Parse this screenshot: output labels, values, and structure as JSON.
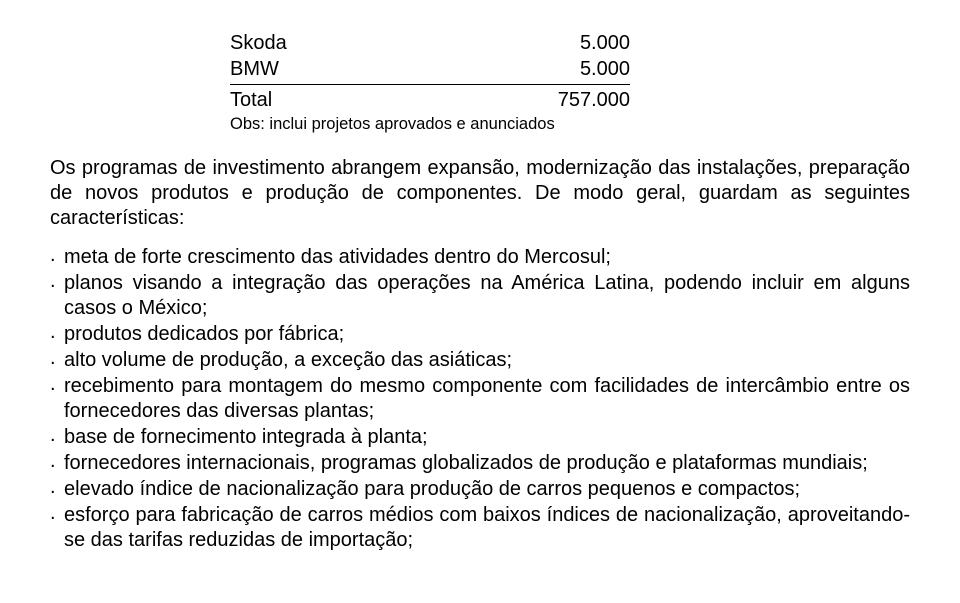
{
  "table": {
    "rows": [
      {
        "label": "Skoda",
        "value": "5.000"
      },
      {
        "label": "BMW",
        "value": "5.000"
      }
    ],
    "total": {
      "label": "Total",
      "value": "757.000"
    },
    "obs": "Obs: inclui projetos aprovados e anunciados"
  },
  "paragraph": {
    "text_before": "Os programas de investimento abrangem expansão, modernização das instalações, preparação de novos produtos e produção de componentes. De modo geral, guardam  as seguintes ",
    "char_word": "características:"
  },
  "bullets": [
    "meta de forte crescimento das atividades dentro do Mercosul;",
    "planos visando a integração das operações na América Latina, podendo incluir em alguns casos o México;",
    "produtos dedicados por fábrica;",
    "alto volume de produção, a exceção das asiáticas;",
    "recebimento para montagem do mesmo componente com facilidades de intercâmbio entre os fornecedores das diversas plantas;",
    "base de fornecimento integrada à planta;",
    "fornecedores internacionais, programas globalizados de produção e plataformas mundiais;",
    "elevado índice de nacionalização para produção de carros pequenos e compactos;",
    "esforço para fabricação de carros médios com baixos índices de nacionalização, aproveitando-se das tarifas reduzidas de importação;"
  ]
}
